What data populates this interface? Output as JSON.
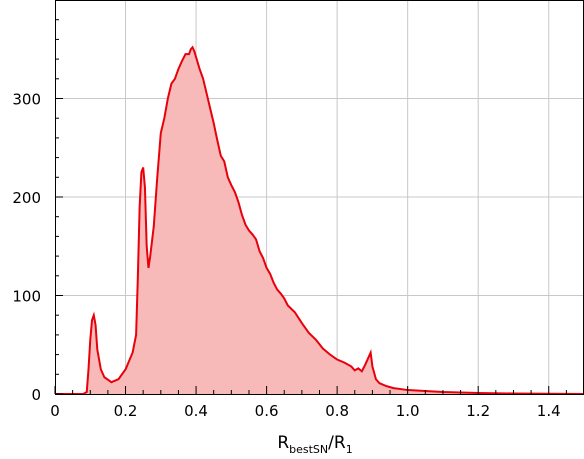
{
  "chart_data": {
    "type": "area",
    "title": "",
    "xlabel": {
      "main": "R",
      "sub1": "bestSN",
      "slash": "/R",
      "sub2": "1"
    },
    "ylabel": "",
    "xlim": [
      0,
      1.5
    ],
    "ylim": [
      0,
      400
    ],
    "x_ticks": [
      0,
      0.2,
      0.4,
      0.6,
      0.8,
      1.0,
      1.2,
      1.4
    ],
    "x_tick_labels": [
      "0",
      "0.2",
      "0.4",
      "0.6",
      "0.8",
      "1.0",
      "1.2",
      "1.4"
    ],
    "y_ticks": [
      0,
      100,
      200,
      300
    ],
    "y_tick_labels": [
      "0",
      "100",
      "200",
      "300"
    ],
    "grid": true,
    "line_color": "#e8000b",
    "fill_color": "#f8b9b9",
    "series": [
      {
        "x": [
          0.0,
          0.08,
          0.09,
          0.095,
          0.1,
          0.105,
          0.11,
          0.115,
          0.12,
          0.13,
          0.14,
          0.16,
          0.18,
          0.2,
          0.22,
          0.23,
          0.235,
          0.24,
          0.245,
          0.25,
          0.255,
          0.26,
          0.265,
          0.27,
          0.275,
          0.28,
          0.29,
          0.3,
          0.31,
          0.32,
          0.33,
          0.34,
          0.35,
          0.36,
          0.37,
          0.38,
          0.385,
          0.39,
          0.395,
          0.4,
          0.41,
          0.42,
          0.43,
          0.44,
          0.45,
          0.46,
          0.47,
          0.48,
          0.49,
          0.5,
          0.51,
          0.52,
          0.53,
          0.54,
          0.55,
          0.56,
          0.57,
          0.58,
          0.59,
          0.6,
          0.61,
          0.62,
          0.63,
          0.64,
          0.65,
          0.66,
          0.68,
          0.7,
          0.72,
          0.74,
          0.76,
          0.78,
          0.8,
          0.82,
          0.84,
          0.85,
          0.86,
          0.87,
          0.88,
          0.89,
          0.895,
          0.9,
          0.91,
          0.92,
          0.94,
          0.96,
          0.98,
          1.0,
          1.05,
          1.1,
          1.15,
          1.2,
          1.3,
          1.4,
          1.5
        ],
        "y": [
          0,
          0,
          2,
          25,
          55,
          75,
          80,
          70,
          45,
          25,
          17,
          12,
          15,
          25,
          42,
          60,
          120,
          190,
          225,
          230,
          210,
          150,
          128,
          140,
          155,
          170,
          220,
          265,
          280,
          300,
          315,
          320,
          330,
          338,
          345,
          345,
          350,
          352,
          348,
          342,
          330,
          320,
          305,
          290,
          275,
          258,
          242,
          236,
          220,
          212,
          205,
          195,
          182,
          172,
          166,
          162,
          157,
          145,
          138,
          128,
          122,
          113,
          106,
          102,
          97,
          90,
          83,
          72,
          62,
          55,
          46,
          40,
          35,
          32,
          28,
          24,
          26,
          23,
          30,
          38,
          42,
          28,
          15,
          11,
          8,
          6,
          5,
          4,
          3,
          2,
          1.5,
          1,
          0.5,
          0.3,
          0
        ]
      }
    ]
  }
}
